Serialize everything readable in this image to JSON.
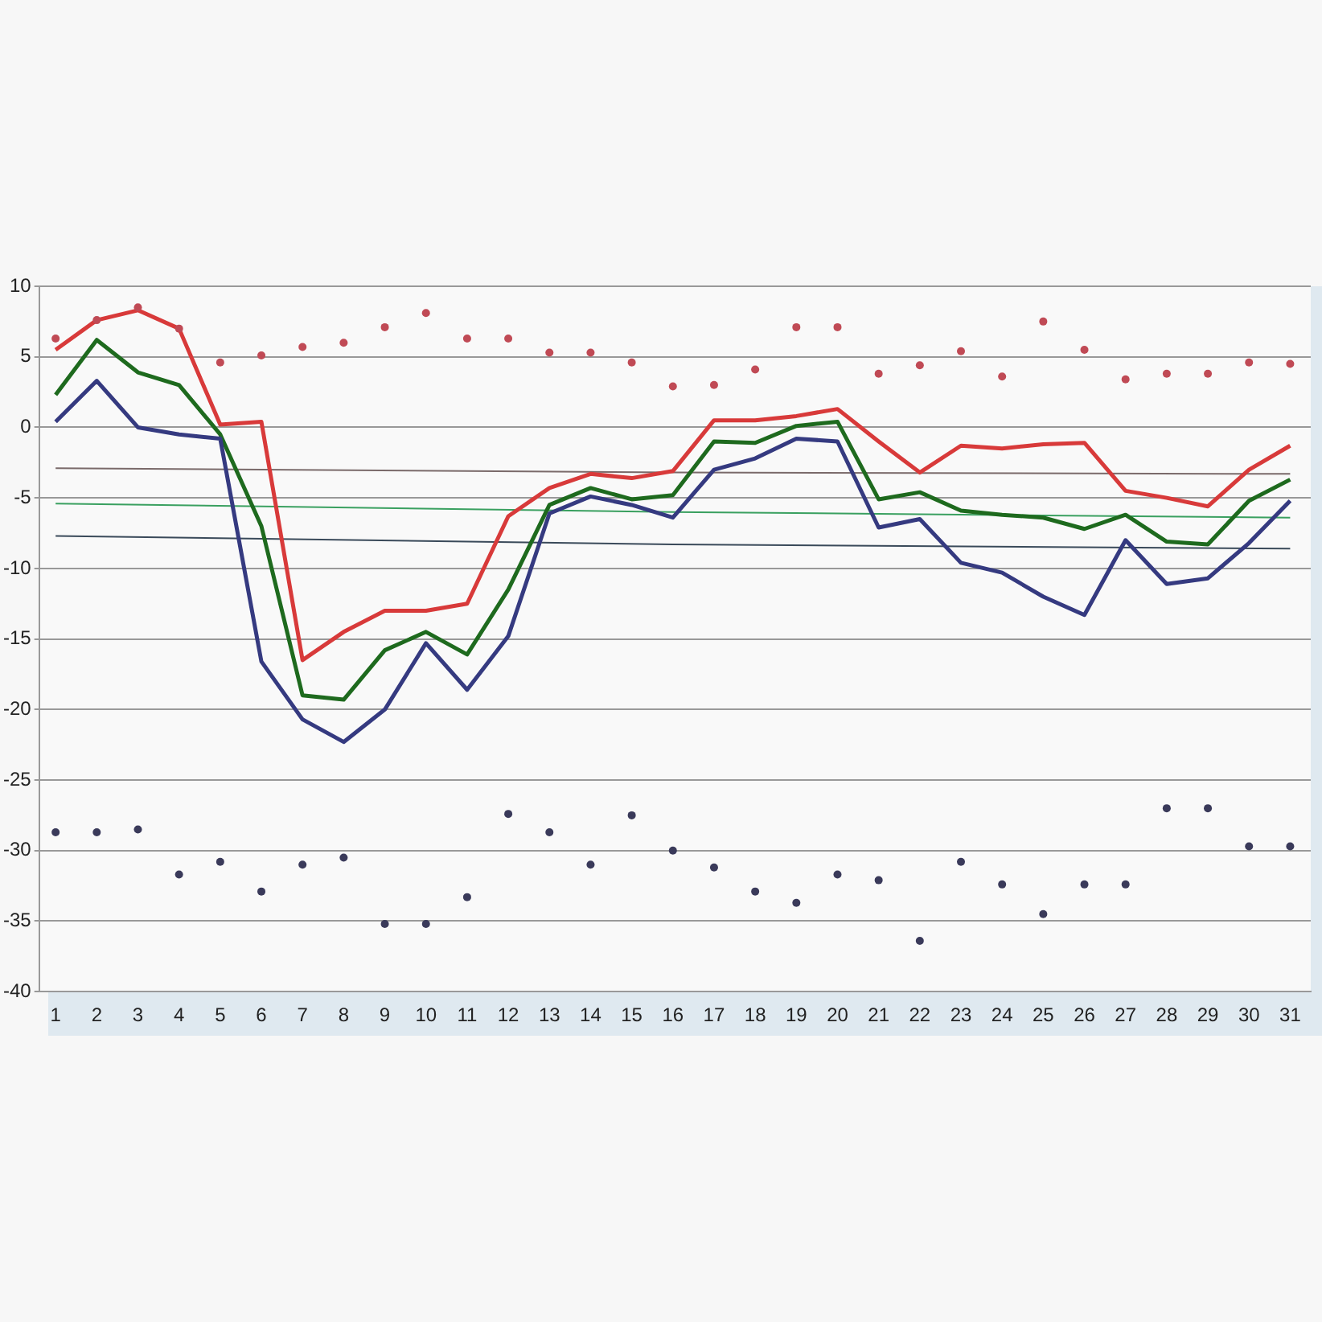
{
  "chart_data": {
    "type": "line",
    "xlim": [
      0.6,
      31.5
    ],
    "xticks": [
      1,
      2,
      3,
      4,
      5,
      6,
      7,
      8,
      9,
      10,
      11,
      12,
      13,
      14,
      15,
      16,
      17,
      18,
      19,
      20,
      21,
      22,
      23,
      24,
      25,
      26,
      27,
      28,
      29,
      30,
      31
    ],
    "ylim": [
      -40,
      10
    ],
    "yticks": [
      -40,
      -35,
      -30,
      -25,
      -20,
      -15,
      -10,
      -5,
      0,
      5,
      10
    ],
    "grid": "y",
    "legend": false,
    "x": [
      1,
      2,
      3,
      4,
      5,
      6,
      7,
      8,
      9,
      10,
      11,
      12,
      13,
      14,
      15,
      16,
      17,
      18,
      19,
      20,
      21,
      22,
      23,
      24,
      25,
      26,
      27,
      28,
      29,
      30,
      31
    ],
    "series": [
      {
        "color": "#7a6a6a",
        "x": [
          1,
          16,
          31
        ],
        "values": [
          -2.9,
          -3.2,
          -3.3
        ],
        "marker": "none"
      },
      {
        "color": "#3aa060",
        "x": [
          1,
          16,
          31
        ],
        "values": [
          -5.4,
          -6.0,
          -6.4
        ],
        "marker": "none"
      },
      {
        "color": "#3a4a5a",
        "x": [
          1,
          16,
          31
        ],
        "values": [
          -7.7,
          -8.3,
          -8.6
        ],
        "marker": "none"
      },
      {
        "color": "#d83a3a",
        "marker": "none",
        "values": [
          5.5,
          7.6,
          8.3,
          7.0,
          0.2,
          0.4,
          -16.5,
          -14.5,
          -13,
          -13,
          -12.5,
          -6.3,
          -4.3,
          -3.3,
          -3.6,
          -3.1,
          0.5,
          0.5,
          0.8,
          1.3,
          -1,
          -3.2,
          -1.3,
          -1.5,
          -1.2,
          -1.1,
          -4.5,
          -5,
          -5.6,
          -3,
          -1.3
        ]
      },
      {
        "color": "#1e6a1e",
        "marker": "none",
        "values": [
          2.3,
          6.2,
          3.9,
          3,
          -0.5,
          -7,
          -19,
          -19.3,
          -15.8,
          -14.5,
          -16.1,
          -11.5,
          -5.5,
          -4.3,
          -5.1,
          -4.8,
          -1,
          -1.1,
          0.1,
          0.4,
          -5.1,
          -4.6,
          -5.9,
          -6.2,
          -6.4,
          -7.2,
          -6.2,
          -8.1,
          -8.3,
          -5.2,
          -3.7
        ]
      },
      {
        "color": "#353a80",
        "marker": "none",
        "values": [
          0.4,
          3.3,
          0,
          -0.5,
          -0.8,
          -16.6,
          -20.7,
          -22.3,
          -20,
          -15.3,
          -18.6,
          -14.8,
          -6.1,
          -4.9,
          -5.5,
          -6.4,
          -3,
          -2.2,
          -0.8,
          -1,
          -7.1,
          -6.5,
          -9.6,
          -10.3,
          -12,
          -13.3,
          -8,
          -11.1,
          -10.7,
          -8.2,
          -5.2
        ]
      },
      {
        "type": "scatter",
        "color": "#c04a55",
        "marker": "circle",
        "values": [
          6.3,
          7.6,
          8.5,
          7.0,
          4.6,
          5.1,
          5.7,
          6.0,
          7.1,
          8.1,
          6.3,
          6.3,
          5.3,
          5.3,
          4.6,
          2.9,
          3.0,
          4.1,
          7.1,
          7.1,
          3.8,
          4.4,
          5.4,
          3.6,
          7.5,
          5.5,
          3.4,
          3.8,
          3.8,
          4.6,
          4.5
        ]
      },
      {
        "type": "scatter",
        "color": "#3a3a5a",
        "marker": "circle",
        "values": [
          -28.7,
          -28.7,
          -28.5,
          -31.7,
          -30.8,
          -32.9,
          -31,
          -30.5,
          -35.2,
          -35.2,
          -33.3,
          -27.4,
          -28.7,
          -31,
          -27.5,
          -30,
          -31.2,
          -32.9,
          -33.7,
          -31.7,
          -32.1,
          -36.4,
          -30.8,
          -32.4,
          -34.5,
          -32.4,
          -32.4,
          -27,
          -27,
          -29.7,
          -29.7
        ]
      }
    ]
  }
}
